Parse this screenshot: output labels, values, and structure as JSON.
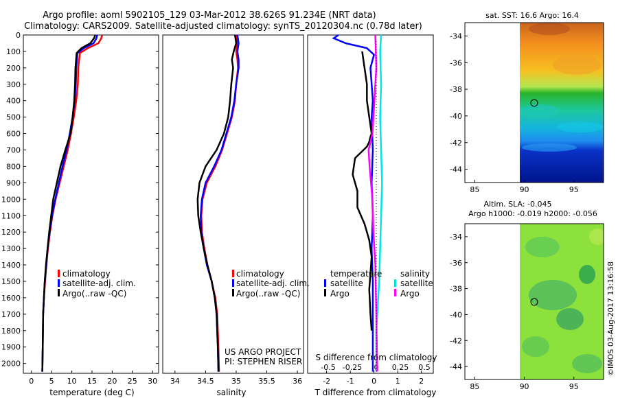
{
  "title": {
    "line1": "Argo profile: aoml 5902105_129 03-Mar-2012 38.626S 91.234E (NRT data)",
    "line2": "Climatology: CARS2009. Satellite-adjusted climatology: synTS_20120304.nc (0.78d later)"
  },
  "colors": {
    "climatology": "#ff0000",
    "satellite": "#0000ff",
    "argo": "#000000",
    "sal_satellite": "#00e5e5",
    "sal_argo": "#ff00ff",
    "axis": "#000000"
  },
  "chart_data": [
    {
      "type": "line",
      "name": "temperature-profile",
      "xlabel": "temperature (deg C)",
      "ylabel": "",
      "xlim": [
        -2,
        31.5
      ],
      "ylim": [
        2060,
        0
      ],
      "xticks": [
        0,
        5,
        10,
        15,
        20,
        25,
        30
      ],
      "yticks": [
        0,
        100,
        200,
        300,
        400,
        500,
        600,
        700,
        800,
        900,
        1000,
        1100,
        1200,
        1300,
        1400,
        1500,
        1600,
        1700,
        1800,
        1900,
        2000
      ],
      "legend": [
        "climatology",
        "satellite-adj. clim.",
        "Argo(..raw -QC)"
      ],
      "legend_position": "bottom-right",
      "series": [
        {
          "name": "climatology",
          "color": "red",
          "x": [
            17.5,
            17.3,
            16.6,
            14.0,
            12.0,
            11.6,
            11.5,
            11.1,
            10.5,
            9.8,
            9.0,
            8.0,
            7.0,
            6.0,
            5.2,
            4.6,
            4.1,
            3.7,
            3.4,
            3.1,
            2.9,
            2.8,
            2.7
          ],
          "y": [
            0,
            20,
            50,
            80,
            110,
            200,
            300,
            400,
            500,
            600,
            700,
            800,
            900,
            1000,
            1100,
            1200,
            1300,
            1400,
            1500,
            1600,
            1700,
            1900,
            2050
          ]
        },
        {
          "name": "satellite-adj. clim.",
          "color": "blue",
          "x": [
            16.3,
            16.1,
            15.4,
            13.0,
            11.4,
            11.1,
            11.0,
            10.7,
            10.2,
            9.5,
            8.7,
            7.7,
            6.8,
            5.9,
            5.1,
            4.5,
            4.0,
            3.7,
            3.3,
            3.1,
            2.9,
            2.8,
            2.7
          ],
          "y": [
            0,
            20,
            50,
            80,
            110,
            200,
            300,
            400,
            500,
            600,
            700,
            800,
            900,
            1000,
            1100,
            1200,
            1300,
            1400,
            1500,
            1600,
            1700,
            1900,
            2050
          ]
        },
        {
          "name": "Argo",
          "color": "black",
          "x": [
            15.8,
            15.5,
            14.6,
            12.4,
            11.2,
            10.9,
            10.8,
            10.6,
            10.2,
            9.7,
            8.4,
            7.2,
            6.3,
            5.4,
            4.9,
            4.4,
            4.0,
            3.6,
            3.3,
            3.1,
            2.9,
            2.8,
            2.7
          ],
          "y": [
            0,
            20,
            50,
            80,
            110,
            200,
            300,
            400,
            500,
            600,
            700,
            800,
            900,
            1000,
            1100,
            1200,
            1300,
            1400,
            1500,
            1600,
            1700,
            1900,
            2050
          ]
        }
      ]
    },
    {
      "type": "line",
      "name": "salinity-profile",
      "xlabel": "salinity",
      "xlim": [
        33.8,
        36.1
      ],
      "ylim": [
        2060,
        0
      ],
      "xticks": [
        34,
        34.5,
        35,
        35.5,
        36
      ],
      "legend": [
        "climatology",
        "satellite-adj. clim.",
        "Argo(..raw -QC)"
      ],
      "legend_position": "bottom-right",
      "annotations": [
        "US ARGO PROJECT",
        "PI: STEPHEN RISER"
      ],
      "series": [
        {
          "name": "climatology",
          "color": "red",
          "x": [
            35.0,
            35.02,
            35.0,
            35.02,
            35.03,
            35.0,
            34.98,
            34.93,
            34.85,
            34.77,
            34.66,
            34.52,
            34.45,
            34.43,
            34.44,
            34.48,
            34.53,
            34.6,
            34.66,
            34.69,
            34.71,
            34.72
          ],
          "y": [
            0,
            50,
            100,
            150,
            200,
            300,
            400,
            500,
            600,
            700,
            800,
            900,
            1000,
            1100,
            1200,
            1300,
            1400,
            1500,
            1600,
            1700,
            1900,
            2050
          ]
        },
        {
          "name": "satellite-adj. clim.",
          "color": "blue",
          "x": [
            35.02,
            35.04,
            35.02,
            35.04,
            35.04,
            35.0,
            34.97,
            34.92,
            34.84,
            34.76,
            34.64,
            34.5,
            34.44,
            34.42,
            34.43,
            34.47,
            34.52,
            34.6,
            34.65,
            34.68,
            34.7,
            34.71
          ],
          "y": [
            0,
            50,
            100,
            150,
            200,
            300,
            400,
            500,
            600,
            700,
            800,
            900,
            1000,
            1100,
            1200,
            1300,
            1400,
            1500,
            1600,
            1700,
            1900,
            2050
          ]
        },
        {
          "name": "Argo",
          "color": "black",
          "x": [
            34.98,
            35.0,
            34.96,
            34.93,
            34.95,
            34.92,
            34.9,
            34.87,
            34.8,
            34.68,
            34.5,
            34.4,
            34.37,
            34.38,
            34.42,
            34.47,
            34.53,
            34.6,
            34.65,
            34.68,
            34.7,
            34.71
          ],
          "y": [
            0,
            50,
            100,
            150,
            200,
            300,
            400,
            500,
            600,
            700,
            800,
            900,
            1000,
            1100,
            1200,
            1300,
            1400,
            1500,
            1600,
            1700,
            1900,
            2050
          ]
        }
      ]
    },
    {
      "type": "line",
      "name": "difference-from-climatology",
      "xlabel": "T difference from climatology",
      "xlabel_top": "S difference from climatology",
      "xlim": [
        -2.8,
        2.5
      ],
      "ylim": [
        2060,
        0
      ],
      "xticks_T": [
        -2,
        -1,
        0,
        1,
        2
      ],
      "xticks_S": [
        -0.5,
        -0.25,
        0,
        0.25,
        0.5
      ],
      "xticklabels_S": [
        "-0.5",
        "-0.25",
        "0",
        "0.25",
        "0.5"
      ],
      "legend_temperature_title": "temperature",
      "legend_salinity_title": "salinity",
      "legend_temperature": [
        "satellite",
        "Argo"
      ],
      "legend_salinity": [
        "satellite",
        "Argo"
      ],
      "series": [
        {
          "name": "T satellite",
          "color": "blue",
          "x": [
            -1.5,
            -1.7,
            -1.2,
            -0.3,
            0.0,
            -0.15,
            -0.1,
            -0.05,
            -0.1,
            -0.05,
            -0.1,
            -0.05,
            -0.1,
            -0.05,
            -0.05,
            -0.05,
            -0.05,
            -0.05
          ],
          "y": [
            0,
            20,
            50,
            80,
            120,
            200,
            300,
            400,
            500,
            700,
            900,
            1100,
            1300,
            1500,
            1600,
            1800,
            1900,
            2050
          ]
        },
        {
          "name": "T Argo",
          "color": "black",
          "x": [
            -0.5,
            -0.4,
            -0.3,
            -0.3,
            -0.2,
            -0.1,
            -0.15,
            -0.2,
            -0.3,
            -0.8,
            -0.9,
            -0.7,
            -0.7,
            -0.4,
            -0.2,
            -0.1,
            -0.15,
            -0.2,
            -0.15,
            -0.1
          ],
          "y": [
            100,
            200,
            300,
            400,
            500,
            600,
            620,
            650,
            680,
            750,
            850,
            950,
            1050,
            1150,
            1250,
            1350,
            1450,
            1550,
            1700,
            1800
          ]
        },
        {
          "name": "S satellite",
          "color": "cyan",
          "x": [
            0.05,
            0.04,
            0.05,
            0.04,
            0.05,
            0.06,
            0.05,
            0.04,
            0.03,
            0.0,
            0.0
          ],
          "y": [
            0,
            100,
            300,
            500,
            700,
            900,
            1100,
            1300,
            1500,
            1800,
            2050
          ]
        },
        {
          "name": "S Argo",
          "color": "magenta",
          "x": [
            -0.01,
            0.0,
            -0.02,
            -0.04,
            -0.08,
            -0.07,
            -0.04,
            -0.03,
            -0.01,
            0.0,
            0.01
          ],
          "y": [
            0,
            200,
            400,
            600,
            700,
            800,
            1000,
            1200,
            1400,
            1700,
            2050
          ]
        }
      ]
    },
    {
      "type": "heatmap",
      "name": "sst-map",
      "title": "sat. SST: 16.6 Argo: 16.4",
      "xticks": [
        85,
        90,
        95
      ],
      "yticks": [
        -34,
        -36,
        -38,
        -40,
        -42,
        -44
      ],
      "xlim": [
        84,
        98
      ],
      "ylim": [
        -45,
        -33
      ],
      "marker": {
        "lon": 91.234,
        "lat": -38.626
      }
    },
    {
      "type": "heatmap",
      "name": "sla-map",
      "title_line1": "Altim. SLA: -0.045",
      "title_line2": "Argo h1000: -0.019 h2000: -0.056",
      "xticks": [
        85,
        90,
        95
      ],
      "yticks": [
        -34,
        -36,
        -38,
        -40,
        -42,
        -44
      ],
      "xlim": [
        84,
        98
      ],
      "ylim": [
        -45,
        -33
      ],
      "marker": {
        "lon": 91.234,
        "lat": -38.626
      }
    }
  ],
  "footer": {
    "stamp": "©IMOS 03-Aug-2017 13:16:58"
  }
}
